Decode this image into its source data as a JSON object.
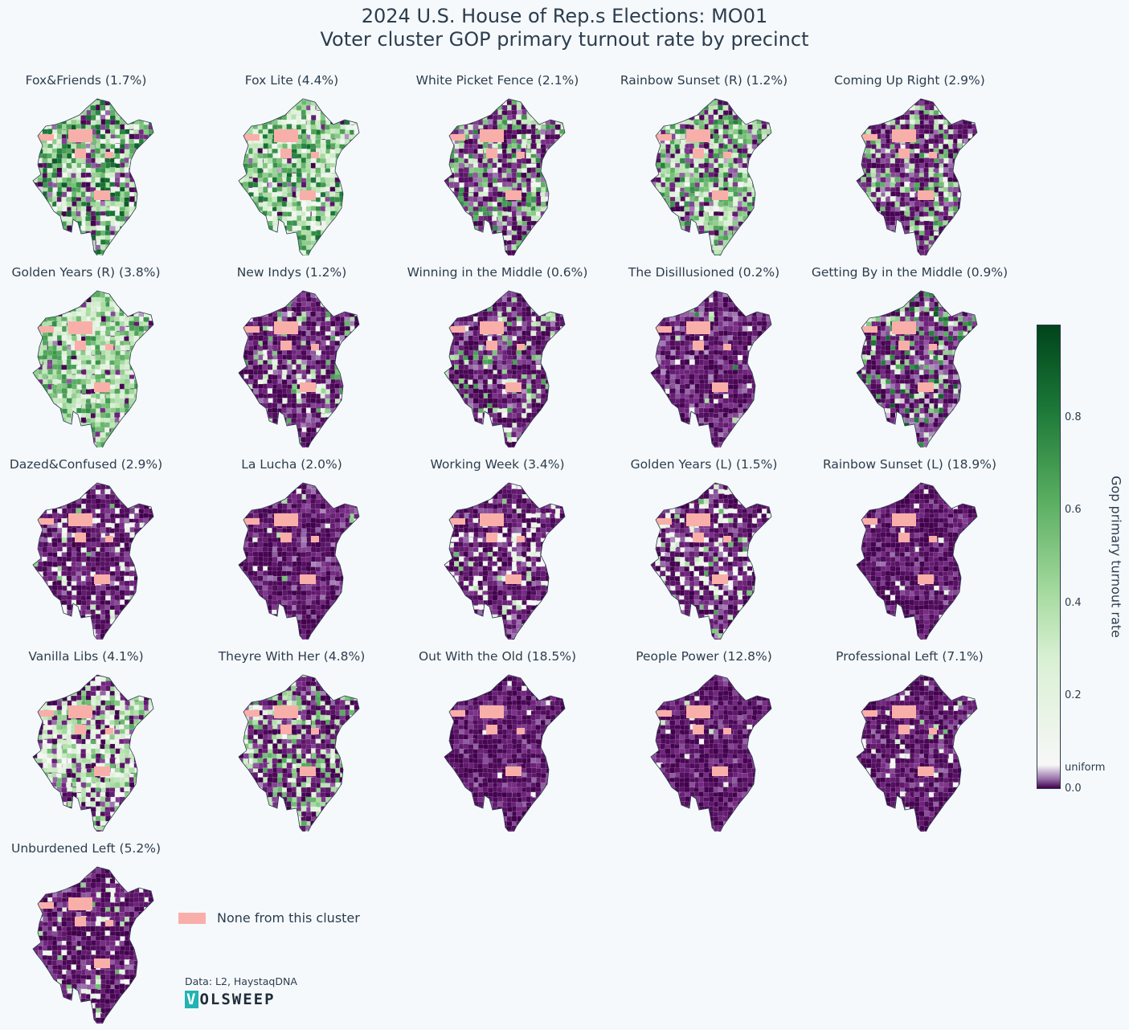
{
  "title": {
    "line1": "2024 U.S. House of Rep.s Elections: MO01",
    "line2": "Voter cluster GOP primary turnout rate by precinct"
  },
  "panels": [
    {
      "label": "Fox&Friends (1.7%)",
      "purple": 0.2,
      "green": 0.7,
      "shade": 0.48
    },
    {
      "label": "Fox Lite (4.4%)",
      "purple": 0.05,
      "green": 0.8,
      "shade": 0.4
    },
    {
      "label": "White Picket Fence (2.1%)",
      "purple": 0.55,
      "green": 0.4,
      "shade": 0.3
    },
    {
      "label": "Rainbow Sunset (R) (1.2%)",
      "purple": 0.3,
      "green": 0.65,
      "shade": 0.32
    },
    {
      "label": "Coming Up Right (2.9%)",
      "purple": 0.7,
      "green": 0.25,
      "shade": 0.25
    },
    {
      "label": "Golden Years (R) (3.8%)",
      "purple": 0.08,
      "green": 0.85,
      "shade": 0.28
    },
    {
      "label": "New Indys (1.2%)",
      "purple": 0.78,
      "green": 0.15,
      "shade": 0.22
    },
    {
      "label": "Winning in the Middle (0.6%)",
      "purple": 0.8,
      "green": 0.15,
      "shade": 0.22
    },
    {
      "label": "The Disillusioned (0.2%)",
      "purple": 0.96,
      "green": 0.02,
      "shade": 0.3
    },
    {
      "label": "Getting By in the Middle (0.9%)",
      "purple": 0.72,
      "green": 0.25,
      "shade": 0.45
    },
    {
      "label": "Dazed&Confused (2.9%)",
      "purple": 0.8,
      "green": 0.05,
      "shade": 0.15
    },
    {
      "label": "La Lucha (2.0%)",
      "purple": 0.97,
      "green": 0.01,
      "shade": 0.2
    },
    {
      "label": "Working Week (3.4%)",
      "purple": 0.78,
      "green": 0.05,
      "shade": 0.15
    },
    {
      "label": "Golden Years (L) (1.5%)",
      "purple": 0.72,
      "green": 0.08,
      "shade": 0.2
    },
    {
      "label": "Rainbow Sunset (L) (18.9%)",
      "purple": 0.97,
      "green": 0.0,
      "shade": 0.1
    },
    {
      "label": "Vanilla Libs (4.1%)",
      "purple": 0.3,
      "green": 0.5,
      "shade": 0.15
    },
    {
      "label": "Theyre With Her (4.8%)",
      "purple": 0.6,
      "green": 0.35,
      "shade": 0.18
    },
    {
      "label": "Out With the Old (18.5%)",
      "purple": 0.98,
      "green": 0.0,
      "shade": 0.1
    },
    {
      "label": "People Power (12.8%)",
      "purple": 0.97,
      "green": 0.01,
      "shade": 0.1
    },
    {
      "label": "Professional Left (7.1%)",
      "purple": 0.92,
      "green": 0.02,
      "shade": 0.1
    },
    {
      "label": "Unburdened Left (5.2%)",
      "purple": 0.9,
      "green": 0.04,
      "shade": 0.12
    }
  ],
  "legend": {
    "none_label": "None from this cluster",
    "none_color": "#f9afa9"
  },
  "credit": "Data: L2, HaystaqDNA",
  "logo": {
    "mark": "V",
    "rest": "OLSWEEP",
    "mark_color": "#22b3b3"
  },
  "colorbar": {
    "title": "Gop primary turnout rate",
    "min": 0.0,
    "max": 1.0,
    "ticks": [
      {
        "label": "0.8",
        "value": 0.8
      },
      {
        "label": "0.6",
        "value": 0.6
      },
      {
        "label": "0.4",
        "value": 0.4
      },
      {
        "label": "0.2",
        "value": 0.2
      },
      {
        "label": "uniform",
        "value": 0.045
      },
      {
        "label": "0.0",
        "value": 0.0
      }
    ],
    "colors": {
      "purple": "#40004b",
      "mid": "#f7f7f7",
      "green": "#00441b"
    }
  }
}
